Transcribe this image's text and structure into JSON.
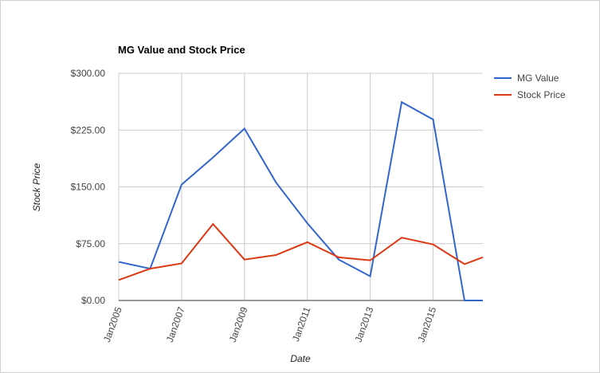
{
  "chart_data": {
    "type": "line",
    "title": "MG Value and Stock Price",
    "x_label": "Date",
    "y_label": "Stock Price",
    "x": [
      "2005-01",
      "2006-01",
      "2007-01",
      "2008-01",
      "2009-01",
      "2010-01",
      "2011-01",
      "2012-01",
      "2013-01",
      "2014-01",
      "2015-01",
      "2016-01",
      "2016-08"
    ],
    "series": [
      {
        "name": "MG Value",
        "color": "#3366cc",
        "values": [
          51,
          42,
          153,
          189,
          227,
          156,
          102,
          54,
          32,
          262,
          239,
          0,
          0
        ]
      },
      {
        "name": "Stock Price",
        "color": "#dc3912",
        "values": [
          27,
          42,
          49,
          101,
          54,
          60,
          77,
          57,
          53,
          83,
          74,
          48,
          57
        ]
      }
    ],
    "xlim": [
      "2005-01",
      "2016-08"
    ],
    "xticks": [
      {
        "value": "2005-01",
        "label": "Jan2005"
      },
      {
        "value": "2007-01",
        "label": "Jan2007"
      },
      {
        "value": "2009-01",
        "label": "Jan2009"
      },
      {
        "value": "2011-01",
        "label": "Jan2011"
      },
      {
        "value": "2013-01",
        "label": "Jan2013"
      },
      {
        "value": "2015-01",
        "label": "Jan2015"
      }
    ],
    "ylim": [
      0,
      300
    ],
    "yticks": [
      {
        "value": 0,
        "label": "$0.00"
      },
      {
        "value": 75,
        "label": "$75.00"
      },
      {
        "value": 150,
        "label": "$150.00"
      },
      {
        "value": 225,
        "label": "$225.00"
      },
      {
        "value": 300,
        "label": "$300.00"
      }
    ],
    "grid": true,
    "legend": "right"
  }
}
